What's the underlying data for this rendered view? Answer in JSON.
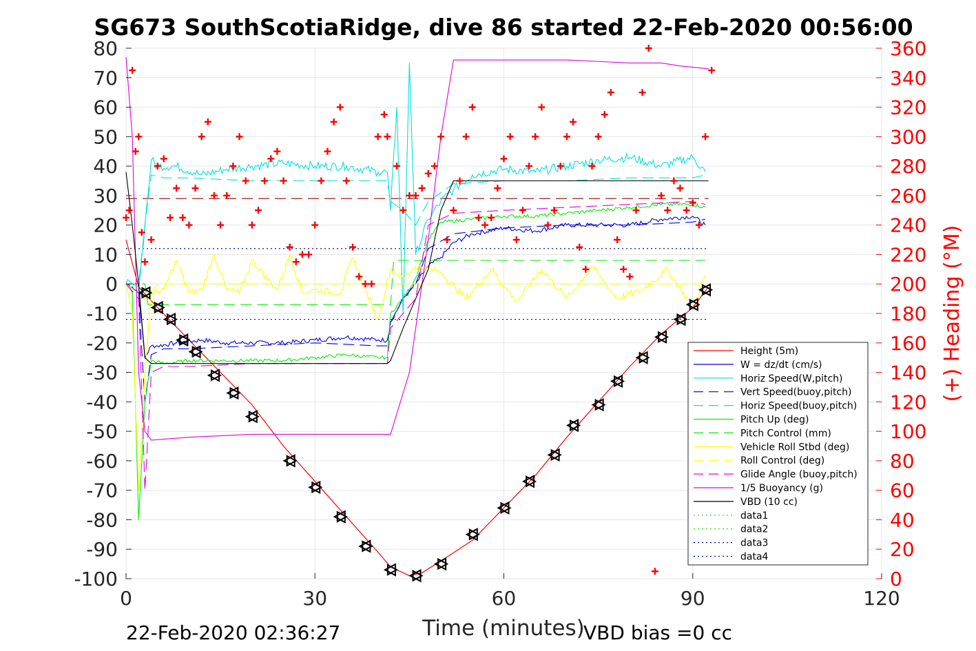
{
  "chart_data": {
    "type": "line",
    "title": "SG673 SouthScotiaRidge, dive 86 started 22-Feb-2020 00:56:00",
    "xlabel": "Time (minutes)",
    "ylabel_right": "(+) Heading (°M)",
    "xlim": [
      0,
      120
    ],
    "ylim_left": [
      -100,
      80
    ],
    "ylim_right": [
      0,
      360
    ],
    "xticks": [
      "0",
      "30",
      "60",
      "90",
      "120"
    ],
    "yticks_left": [
      "80",
      "70",
      "60",
      "50",
      "40",
      "30",
      "20",
      "10",
      "0",
      "-10",
      "-20",
      "-30",
      "-40",
      "-50",
      "-60",
      "-70",
      "-80",
      "-90",
      "-100"
    ],
    "yticks_right": [
      "360",
      "340",
      "320",
      "300",
      "280",
      "260",
      "240",
      "220",
      "200",
      "180",
      "160",
      "140",
      "120",
      "100",
      "80",
      "60",
      "40",
      "20",
      "0"
    ],
    "grid": true,
    "legend_position": "lower-right",
    "footer_left": "22-Feb-2020 02:36:27",
    "footer_right": "VBD bias =0 cc",
    "series": [
      {
        "name": "Height (5m)",
        "color": "#ff0000",
        "style": "solid",
        "x": [
          0,
          2,
          5,
          10,
          15,
          20,
          25,
          30,
          35,
          40,
          42,
          45,
          47,
          50,
          55,
          60,
          65,
          70,
          75,
          80,
          85,
          90,
          92.5
        ],
        "y": [
          15,
          -1,
          -8,
          -19,
          -30,
          -41,
          -55,
          -67,
          -79,
          -91,
          -96,
          -99,
          -98,
          -94,
          -87,
          -76,
          -65,
          -52,
          -40,
          -28,
          -17,
          -8,
          -1
        ]
      },
      {
        "name": "W = dz/dt (cm/s)",
        "color": "#0000dd",
        "style": "solid",
        "x": [
          0,
          1,
          2,
          3,
          4,
          5,
          8,
          12,
          16,
          20,
          25,
          30,
          35,
          40,
          41.5,
          42,
          44,
          46,
          48,
          50,
          52,
          55,
          60,
          65,
          70,
          75,
          80,
          85,
          90,
          92
        ],
        "y": [
          0,
          -1,
          -3,
          -25,
          -21,
          -21,
          -20,
          -19,
          -20,
          -20,
          -20,
          -19,
          -18,
          -19,
          -19,
          -13,
          -5,
          0,
          6,
          9,
          14,
          17,
          19,
          18,
          20,
          20,
          20,
          22,
          23,
          20
        ],
        "noise": 0.8
      },
      {
        "name": "Horiz Speed(W,pitch)",
        "color": "#00e0e0",
        "style": "solid",
        "x": [
          0,
          1,
          2,
          3,
          4,
          5,
          8,
          12,
          16,
          20,
          25,
          30,
          35,
          40,
          41.5,
          42,
          43,
          44,
          45,
          46,
          48,
          50,
          52,
          55,
          60,
          65,
          70,
          75,
          80,
          85,
          90,
          92
        ],
        "y": [
          0,
          0,
          -2,
          20,
          42,
          40,
          40,
          37,
          39,
          40,
          41,
          40,
          40,
          38,
          38,
          25,
          60,
          -10,
          75,
          10,
          22,
          28,
          32,
          37,
          39,
          38,
          40,
          42,
          43,
          40,
          43,
          38
        ],
        "noise": 1.5
      },
      {
        "name": "Vert Speed(buoy,pitch)",
        "color": "#0000dd",
        "style": "dashed",
        "x": [
          0,
          2,
          3,
          4,
          6,
          10,
          20,
          30,
          40,
          41.5,
          42,
          44,
          46,
          48,
          52,
          60,
          70,
          80,
          90,
          92
        ],
        "y": [
          0,
          -5,
          -40,
          -24,
          -22,
          -22,
          -21,
          -20,
          -21,
          -21,
          -13,
          -5,
          0,
          12,
          17,
          19,
          20,
          20,
          21,
          22
        ]
      },
      {
        "name": "Horiz Speed(buoy,pitch)",
        "color": "#00e0e0",
        "style": "dashed",
        "x": [
          0,
          2,
          3,
          4,
          6,
          10,
          20,
          30,
          40,
          41.5,
          42,
          44,
          46,
          48,
          52,
          60,
          70,
          80,
          90,
          92
        ],
        "y": [
          0,
          0,
          20,
          37,
          36,
          36,
          35,
          35,
          35,
          35,
          28,
          25,
          20,
          28,
          34,
          35,
          35,
          36,
          36,
          37
        ]
      },
      {
        "name": "Pitch Up (deg)",
        "color": "#00ee00",
        "style": "solid",
        "x": [
          0,
          1,
          2,
          3,
          4,
          6,
          10,
          15,
          20,
          25,
          30,
          35,
          40,
          41.5,
          42,
          44,
          46,
          48,
          50,
          55,
          60,
          65,
          70,
          75,
          80,
          85,
          90,
          92
        ],
        "y": [
          0,
          -3,
          -80,
          -40,
          -26,
          -27,
          -26,
          -26,
          -26,
          -26,
          -25,
          -24,
          -25,
          -25,
          -10,
          -5,
          2,
          15,
          21,
          22,
          23,
          23,
          24,
          25,
          26,
          27,
          27,
          26
        ],
        "noise": 0.6
      },
      {
        "name": "Pitch Control (mm)",
        "color": "#00ee00",
        "style": "dashed",
        "x": [
          0,
          3,
          3.5,
          42,
          42.5,
          92
        ],
        "y": [
          0,
          0,
          -7,
          -7,
          8,
          8
        ]
      },
      {
        "name": "Vehicle Roll Stbd (deg)",
        "color": "#ffff00",
        "style": "solid",
        "x": [
          0,
          1,
          2,
          3,
          4,
          6,
          8,
          10,
          12,
          14,
          16,
          18,
          20,
          24,
          26,
          28,
          30,
          34,
          36,
          38,
          40,
          42,
          44,
          46,
          50,
          54,
          58,
          62,
          66,
          70,
          74,
          78,
          82,
          86,
          90,
          92
        ],
        "y": [
          0,
          -10,
          -70,
          -30,
          -3,
          -2,
          8,
          -3,
          -2,
          10,
          -2,
          -3,
          8,
          -2,
          10,
          -3,
          -2,
          -3,
          9,
          -2,
          -12,
          5,
          2,
          6,
          4,
          -5,
          5,
          -6,
          5,
          -5,
          6,
          -5,
          -2,
          5,
          -8,
          3
        ],
        "noise": 1.2
      },
      {
        "name": "Roll Control (deg)",
        "color": "#ffff00",
        "style": "dashed",
        "x": [
          0,
          3,
          5,
          92
        ],
        "y": [
          0,
          -5,
          0,
          0
        ]
      },
      {
        "name": "Glide Angle (buoy,pitch)",
        "color": "#dd00dd",
        "style": "dashed",
        "x": [
          0,
          2,
          3,
          4,
          6,
          10,
          20,
          30,
          40,
          41.5,
          42,
          44,
          46,
          48,
          52,
          60,
          70,
          80,
          90,
          92
        ],
        "y": [
          0,
          -5,
          -70,
          -30,
          -28,
          -28,
          -27,
          -27,
          -27,
          -27,
          -15,
          -10,
          -5,
          20,
          24,
          25,
          26,
          27,
          28,
          27
        ]
      },
      {
        "name": "1/5 Buoyancy (g)",
        "color": "#dd00dd",
        "style": "solid",
        "x": [
          0,
          1,
          2,
          3,
          4,
          10,
          20,
          30,
          40,
          42,
          45,
          48,
          50,
          52,
          60,
          70,
          80,
          85,
          88,
          92.5
        ],
        "y": [
          77,
          50,
          -30,
          -50,
          -53,
          -52,
          -51,
          -51,
          -51,
          -51,
          -30,
          15,
          50,
          76,
          76,
          76,
          75,
          75,
          74,
          73
        ]
      },
      {
        "name": "VBD (10 cc)",
        "color": "#000000",
        "style": "solid",
        "x": [
          0,
          1,
          2,
          3,
          4,
          10,
          20,
          30,
          40,
          41.5,
          42,
          44,
          46,
          48,
          50,
          51,
          52,
          60,
          70,
          80,
          90,
          92.5
        ],
        "y": [
          38,
          20,
          0,
          -25,
          -27,
          -27,
          -27,
          -27,
          -27,
          -27,
          -26,
          -15,
          -5,
          5,
          25,
          30,
          35,
          35,
          35,
          35,
          35,
          35
        ]
      },
      {
        "name": "data1",
        "color": "#00ee00",
        "style": "dotted",
        "x": [],
        "y": []
      },
      {
        "name": "data2",
        "color": "#00ee00",
        "style": "dotted",
        "x": [],
        "y": []
      },
      {
        "name": "data3",
        "color": "#0000aa",
        "style": "dotted",
        "x": [],
        "y": []
      },
      {
        "name": "data4",
        "color": "#0000aa",
        "style": "dotted",
        "x": [],
        "y": []
      }
    ],
    "reference_lines": [
      {
        "color": "#990000",
        "style": "dashed",
        "y": 29,
        "x": [
          0,
          92.5
        ]
      },
      {
        "color": "#0000aa",
        "style": "dotted",
        "y": 12,
        "x": [
          0,
          92.5
        ]
      },
      {
        "color": "#0000aa",
        "style": "dotted",
        "y": -12,
        "x": [
          0,
          92.5
        ]
      }
    ],
    "heading_points_deg": [
      [
        0,
        245
      ],
      [
        0.5,
        250
      ],
      [
        1,
        345
      ],
      [
        1.5,
        290
      ],
      [
        2,
        300
      ],
      [
        2.5,
        235
      ],
      [
        3,
        215
      ],
      [
        4,
        230
      ],
      [
        5,
        280
      ],
      [
        6,
        285
      ],
      [
        7,
        245
      ],
      [
        8,
        265
      ],
      [
        9,
        245
      ],
      [
        10,
        240
      ],
      [
        11,
        265
      ],
      [
        12,
        300
      ],
      [
        13,
        310
      ],
      [
        14,
        260
      ],
      [
        15,
        240
      ],
      [
        16,
        260
      ],
      [
        17,
        280
      ],
      [
        18,
        300
      ],
      [
        19,
        270
      ],
      [
        20,
        240
      ],
      [
        21,
        250
      ],
      [
        22,
        270
      ],
      [
        23,
        285
      ],
      [
        24,
        290
      ],
      [
        25,
        270
      ],
      [
        26,
        225
      ],
      [
        27,
        215
      ],
      [
        28,
        220
      ],
      [
        29,
        220
      ],
      [
        30,
        240
      ],
      [
        31,
        270
      ],
      [
        32,
        290
      ],
      [
        33,
        310
      ],
      [
        34,
        320
      ],
      [
        35,
        270
      ],
      [
        36,
        225
      ],
      [
        37,
        205
      ],
      [
        38,
        200
      ],
      [
        39,
        200
      ],
      [
        40,
        300
      ],
      [
        41,
        315
      ],
      [
        41.5,
        300
      ],
      [
        43,
        280
      ],
      [
        44,
        250
      ],
      [
        45,
        260
      ],
      [
        46,
        260
      ],
      [
        47,
        265
      ],
      [
        48,
        275
      ],
      [
        49,
        280
      ],
      [
        50,
        300
      ],
      [
        51,
        230
      ],
      [
        52,
        250
      ],
      [
        53,
        270
      ],
      [
        54,
        300
      ],
      [
        55,
        320
      ],
      [
        56,
        245
      ],
      [
        57,
        240
      ],
      [
        58,
        245
      ],
      [
        59,
        265
      ],
      [
        60,
        285
      ],
      [
        61,
        300
      ],
      [
        62,
        230
      ],
      [
        63,
        250
      ],
      [
        64,
        280
      ],
      [
        65,
        300
      ],
      [
        66,
        320
      ],
      [
        67,
        240
      ],
      [
        68,
        250
      ],
      [
        69,
        280
      ],
      [
        70,
        300
      ],
      [
        71,
        310
      ],
      [
        72,
        225
      ],
      [
        73,
        210
      ],
      [
        74,
        280
      ],
      [
        75,
        300
      ],
      [
        76,
        315
      ],
      [
        77,
        330
      ],
      [
        78,
        230
      ],
      [
        79,
        210
      ],
      [
        80,
        205
      ],
      [
        81,
        250
      ],
      [
        82,
        330
      ],
      [
        83,
        360
      ],
      [
        84,
        5
      ],
      [
        85,
        260
      ],
      [
        86,
        250
      ],
      [
        87,
        270
      ],
      [
        88,
        265
      ],
      [
        89,
        250
      ],
      [
        90,
        255
      ],
      [
        91,
        240
      ],
      [
        92,
        300
      ],
      [
        93,
        345
      ]
    ],
    "vertical_markers": [
      {
        "x": 3,
        "y": -3
      },
      {
        "x": 5,
        "y": -8
      },
      {
        "x": 7,
        "y": -12
      },
      {
        "x": 9,
        "y": -19
      },
      {
        "x": 11,
        "y": -23
      },
      {
        "x": 14,
        "y": -31
      },
      {
        "x": 17,
        "y": -37
      },
      {
        "x": 20,
        "y": -45
      },
      {
        "x": 26,
        "y": -60
      },
      {
        "x": 30,
        "y": -69
      },
      {
        "x": 34,
        "y": -79
      },
      {
        "x": 38,
        "y": -89
      },
      {
        "x": 42,
        "y": -97
      },
      {
        "x": 46,
        "y": -99
      },
      {
        "x": 50,
        "y": -95
      },
      {
        "x": 55,
        "y": -85
      },
      {
        "x": 60,
        "y": -76
      },
      {
        "x": 64,
        "y": -67
      },
      {
        "x": 68,
        "y": -58
      },
      {
        "x": 71,
        "y": -48
      },
      {
        "x": 75,
        "y": -41
      },
      {
        "x": 78,
        "y": -33
      },
      {
        "x": 82,
        "y": -25
      },
      {
        "x": 85,
        "y": -18
      },
      {
        "x": 88,
        "y": -12
      },
      {
        "x": 90,
        "y": -7
      },
      {
        "x": 92,
        "y": -2
      }
    ]
  }
}
